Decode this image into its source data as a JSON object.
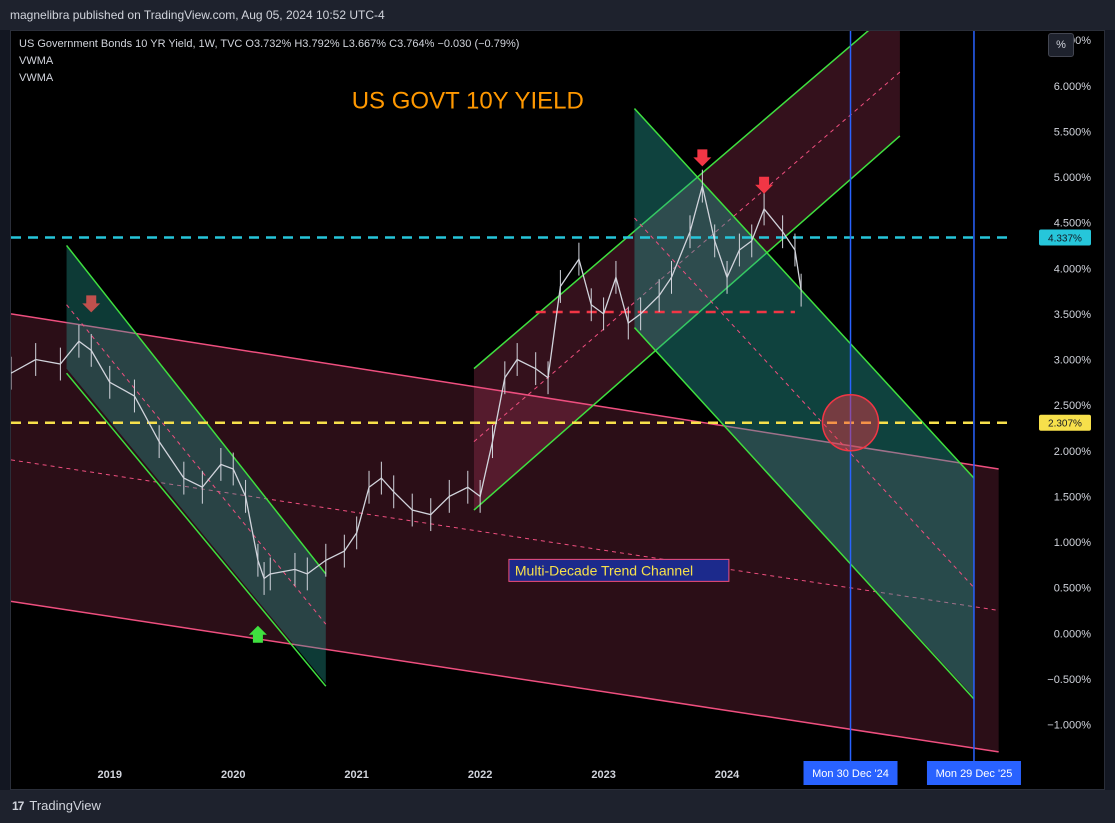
{
  "header": {
    "publisher_line": "magnelibra published on TradingView.com, Aug 05, 2024 10:52 UTC-4"
  },
  "legend": {
    "title": "US Government Bonds 10 YR Yield, 1W, TVC  O3.732%  H3.792%  L3.667%  C3.764%  −0.030 (−0.79%)",
    "indicators": [
      "VWMA",
      "VWMA"
    ]
  },
  "toolbar": {
    "percent_label": "%"
  },
  "footer": {
    "brand": "TradingView",
    "logo": "17"
  },
  "colors": {
    "price": "#d1d4dc",
    "channel_green": "#3fe03f",
    "channel_pink": "#ef4f7f",
    "cyan": "#26c6da",
    "yellow": "#f7e04b",
    "red": "#f23645",
    "label_blue": "#2962ff",
    "title_orange": "#ff9800"
  },
  "chart_data": {
    "type": "line",
    "title": "US GOVT 10Y YIELD",
    "xlabel": "",
    "ylabel": "",
    "x_ticks": [
      "2019",
      "2020",
      "2021",
      "2022",
      "2023",
      "2024"
    ],
    "y_ticks": [
      "6.500%",
      "6.000%",
      "5.500%",
      "5.000%",
      "4.500%",
      "4.000%",
      "3.500%",
      "3.000%",
      "2.500%",
      "2.000%",
      "1.500%",
      "1.000%",
      "0.500%",
      "0.000%",
      "−0.500%",
      "−1.000%"
    ],
    "ylim": [
      -1.4,
      6.6
    ],
    "xlim": [
      2018.2,
      2026.3
    ],
    "series": [
      {
        "values_x": [
          2018.2,
          2018.4,
          2018.6,
          2018.75,
          2018.85,
          2019.0,
          2019.2,
          2019.4,
          2019.6,
          2019.75,
          2019.9,
          2020.0,
          2020.1,
          2020.2,
          2020.25,
          2020.3,
          2020.5,
          2020.6,
          2020.75,
          2020.9,
          2021.0,
          2021.1,
          2021.2,
          2021.3,
          2021.45,
          2021.6,
          2021.75,
          2021.9,
          2022.0,
          2022.1,
          2022.2,
          2022.3,
          2022.45,
          2022.55,
          2022.65,
          2022.8,
          2022.9,
          2023.0,
          2023.1,
          2023.2,
          2023.3,
          2023.45,
          2023.55,
          2023.7,
          2023.8,
          2023.9,
          2024.0,
          2024.1,
          2024.2,
          2024.3,
          2024.45,
          2024.55,
          2024.6
        ],
        "values_y": [
          2.85,
          3.0,
          2.95,
          3.2,
          3.1,
          2.75,
          2.6,
          2.1,
          1.7,
          1.6,
          1.85,
          1.8,
          1.5,
          0.8,
          0.6,
          0.65,
          0.7,
          0.65,
          0.8,
          0.9,
          1.1,
          1.6,
          1.7,
          1.55,
          1.35,
          1.3,
          1.5,
          1.6,
          1.5,
          2.1,
          2.8,
          3.0,
          2.9,
          2.8,
          3.8,
          4.1,
          3.6,
          3.5,
          3.9,
          3.4,
          3.5,
          3.7,
          3.9,
          4.4,
          4.9,
          4.3,
          3.9,
          4.2,
          4.3,
          4.65,
          4.4,
          4.2,
          3.76
        ]
      }
    ],
    "horizontal_levels": [
      {
        "value": 4.337,
        "label": "4.337%",
        "style": "dashed",
        "color": "#26c6da"
      },
      {
        "value": 2.307,
        "label": "2.307%",
        "style": "dashed",
        "color": "#f7e04b"
      },
      {
        "value": 3.52,
        "style": "dashed",
        "color": "#f23645"
      }
    ],
    "vertical_markers": [
      {
        "x": 2025.0,
        "label": "Mon 30 Dec '24"
      },
      {
        "x": 2026.0,
        "label": "Mon 29 Dec '25"
      }
    ],
    "annotations": [
      {
        "text": "Multi-Decade Trend Channel",
        "x": 2022.8,
        "y": 0.7
      }
    ],
    "legend": "top-left",
    "grid": false
  }
}
